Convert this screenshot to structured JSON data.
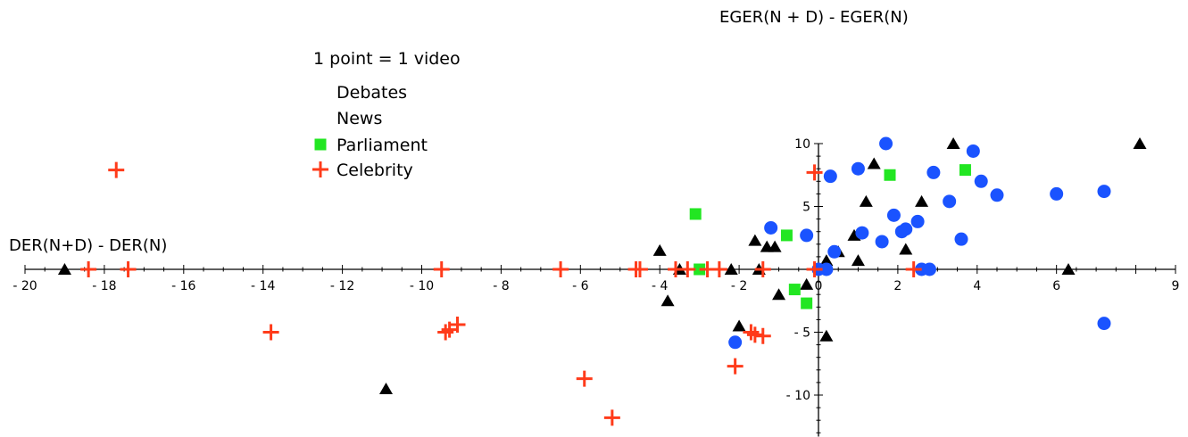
{
  "chart_data": {
    "type": "scatter",
    "title": "",
    "xlabel": "DER(N+D) - DER(N)",
    "ylabel": "EGER(N + D) - EGER(N)",
    "xlim": [
      -20,
      9
    ],
    "ylim": [
      -13,
      10
    ],
    "x_ticks": [
      "-20",
      "-18",
      "-16",
      "-14",
      "-12",
      "-10",
      "-8",
      "-6",
      "-4",
      "-2",
      "0",
      "2",
      "4",
      "6",
      "9"
    ],
    "y_ticks": [
      "10",
      "5",
      "-5",
      "-10"
    ],
    "legend_title": "1 point = 1 video",
    "legend_position": "top-center",
    "series": [
      {
        "name": "Debates",
        "color": "#000000",
        "marker": "triangle",
        "points": [
          [
            -19.0,
            0
          ],
          [
            -10.9,
            -9.5
          ],
          [
            -4.0,
            1.5
          ],
          [
            -3.8,
            -2.5
          ],
          [
            -3.5,
            0
          ],
          [
            -2.2,
            0
          ],
          [
            -2.0,
            -4.5
          ],
          [
            -1.6,
            2.3
          ],
          [
            -1.5,
            0
          ],
          [
            -1.3,
            1.8
          ],
          [
            -1.1,
            1.8
          ],
          [
            -1.0,
            -2.0
          ],
          [
            -0.3,
            -1.2
          ],
          [
            0.2,
            0.7
          ],
          [
            0.2,
            -5.3
          ],
          [
            0.5,
            1.4
          ],
          [
            0.9,
            2.7
          ],
          [
            1.0,
            0.7
          ],
          [
            1.2,
            5.4
          ],
          [
            1.4,
            8.4
          ],
          [
            2.2,
            1.6
          ],
          [
            2.6,
            5.4
          ],
          [
            3.4,
            10
          ],
          [
            6.3,
            0
          ],
          [
            8.1,
            10
          ]
        ]
      },
      {
        "name": "News",
        "color": "#1a53ff",
        "marker": "circle",
        "points": [
          [
            -2.1,
            -5.8
          ],
          [
            -1.2,
            3.3
          ],
          [
            -0.3,
            2.7
          ],
          [
            0,
            0
          ],
          [
            0.2,
            0
          ],
          [
            0.3,
            7.4
          ],
          [
            0.4,
            1.4
          ],
          [
            1.0,
            8.0
          ],
          [
            1.1,
            2.9
          ],
          [
            1.6,
            2.2
          ],
          [
            1.7,
            10
          ],
          [
            1.9,
            4.3
          ],
          [
            2.1,
            3.0
          ],
          [
            2.2,
            3.2
          ],
          [
            2.5,
            3.8
          ],
          [
            2.6,
            0
          ],
          [
            2.8,
            0
          ],
          [
            2.9,
            7.7
          ],
          [
            3.3,
            5.4
          ],
          [
            3.6,
            2.4
          ],
          [
            3.9,
            9.4
          ],
          [
            4.1,
            7.0
          ],
          [
            4.5,
            5.9
          ],
          [
            6.0,
            6.0
          ],
          [
            7.2,
            6.2
          ],
          [
            7.2,
            -4.3
          ]
        ]
      },
      {
        "name": "Parliament",
        "color": "#22e622",
        "marker": "square",
        "points": [
          [
            -3.1,
            4.4
          ],
          [
            -3.0,
            0
          ],
          [
            -0.8,
            2.7
          ],
          [
            -0.6,
            -1.6
          ],
          [
            -0.3,
            -2.7
          ],
          [
            1.8,
            7.5
          ],
          [
            3.7,
            7.9
          ]
        ]
      },
      {
        "name": "Celebrity",
        "color": "#ff3b1a",
        "marker": "cross",
        "points": [
          [
            -18.4,
            0
          ],
          [
            -17.4,
            0
          ],
          [
            -17.7,
            7.9
          ],
          [
            -13.8,
            -5.0
          ],
          [
            -9.5,
            0
          ],
          [
            -9.4,
            -5.0
          ],
          [
            -9.3,
            -4.8
          ],
          [
            -9.1,
            -4.4
          ],
          [
            -6.5,
            0
          ],
          [
            -5.9,
            -8.7
          ],
          [
            -5.2,
            -11.8
          ],
          [
            -4.6,
            0
          ],
          [
            -4.5,
            0
          ],
          [
            -3.6,
            0
          ],
          [
            -3.3,
            0
          ],
          [
            -2.8,
            0
          ],
          [
            -2.5,
            0
          ],
          [
            -2.1,
            -7.7
          ],
          [
            -1.7,
            -5.0
          ],
          [
            -1.6,
            -5.2
          ],
          [
            -1.4,
            -5.3
          ],
          [
            -1.4,
            0
          ],
          [
            -0.1,
            0
          ],
          [
            -0.1,
            7.7
          ],
          [
            2.4,
            0
          ]
        ]
      }
    ]
  }
}
